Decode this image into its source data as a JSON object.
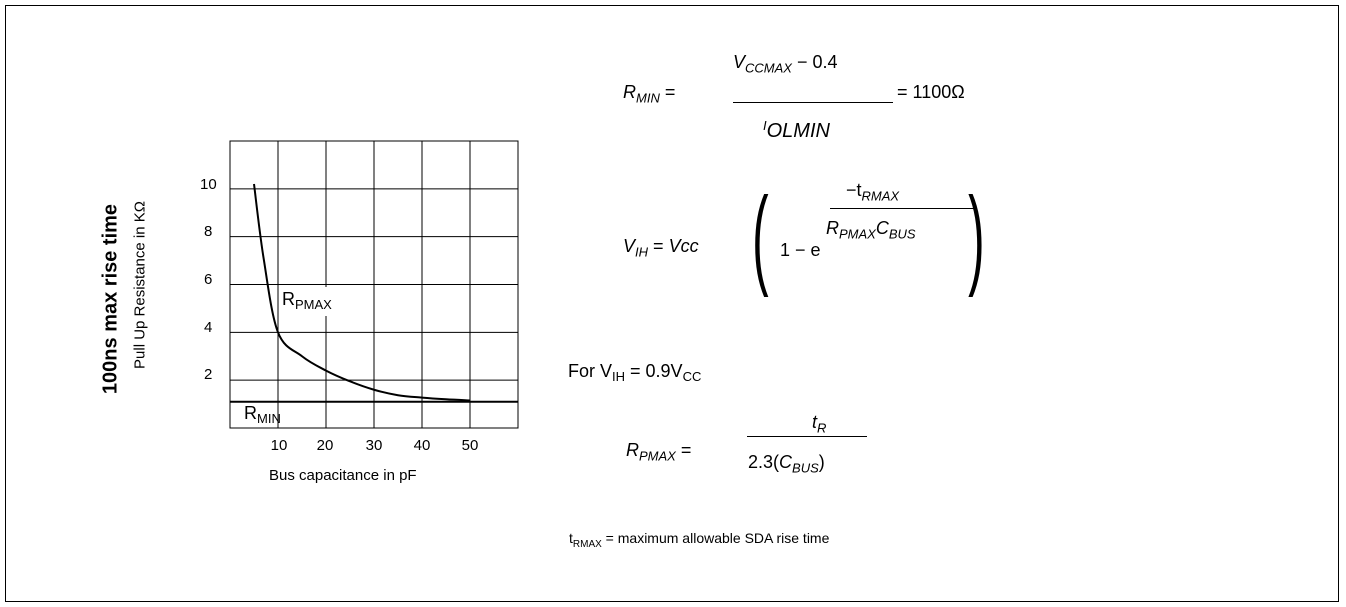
{
  "y_label_bold": "100ns max rise time",
  "y_label": "Pull Up Resistance in KΩ",
  "x_label": "Bus capacitance in pF",
  "curve_label": "R",
  "curve_label_sub": "PMAX",
  "min_label": "R",
  "min_label_sub": "MIN",
  "y_ticks": [
    "2",
    "4",
    "6",
    "8",
    "10"
  ],
  "x_ticks": [
    "10",
    "20",
    "30",
    "40",
    "50"
  ],
  "eq1": {
    "lhs": "R",
    "lhs_sub": "MIN",
    "num_v": "V",
    "num_sub": "CCMAX",
    "num_tail": " − 0.4",
    "den_i": "I",
    "den_sub": "OLMIN",
    "result": "= 1100Ω",
    "equals": "="
  },
  "eq2": {
    "lhs": "V",
    "lhs_sub": "IH",
    "equals": "=",
    "vcc": "Vcc",
    "one_minus": "1 − e",
    "exp_num": "−t",
    "exp_num_sub": "RMAX",
    "exp_den_r": "R",
    "exp_den_r_sub": "PMAX",
    "exp_den_c": "C",
    "exp_den_c_sub": "BUS"
  },
  "for_line": {
    "prefix": "For  V",
    "sub1": "IH",
    "mid": " = 0.9V",
    "sub2": "CC"
  },
  "eq3": {
    "lhs": "R",
    "lhs_sub": "PMAX",
    "equals": "=",
    "num_t": "t",
    "num_sub": "R",
    "den_pre": "2.3(",
    "den_c": "C",
    "den_sub": "BUS",
    "den_post": ")"
  },
  "note": {
    "t": "t",
    "sub": "RMAX",
    "text": " = maximum allowable SDA rise time"
  },
  "chart_data": {
    "type": "line",
    "title": "",
    "xlabel": "Bus capacitance in pF",
    "ylabel": "Pull Up Resistance in KΩ",
    "xlim": [
      0,
      60
    ],
    "ylim": [
      0,
      12
    ],
    "grid": true,
    "series": [
      {
        "name": "RPMAX",
        "x": [
          5,
          7,
          10,
          15,
          20,
          25,
          30,
          35,
          40,
          45,
          50
        ],
        "y": [
          10.2,
          7.1,
          4.0,
          3.0,
          2.4,
          1.95,
          1.6,
          1.37,
          1.27,
          1.2,
          1.15
        ]
      },
      {
        "name": "RMIN",
        "x": [
          0,
          60
        ],
        "y": [
          1.1,
          1.1
        ]
      }
    ]
  }
}
